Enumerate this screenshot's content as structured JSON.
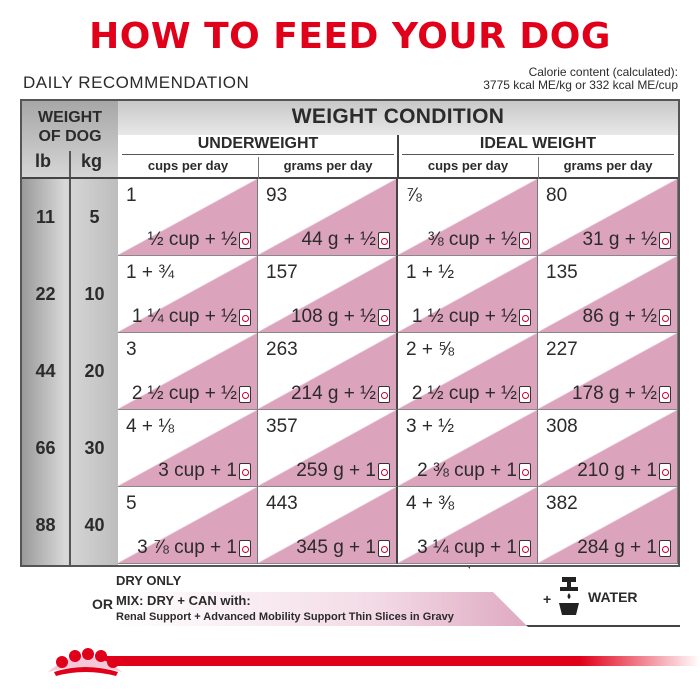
{
  "title": "HOW TO FEED YOUR DOG",
  "daily_recommendation": "DAILY RECOMMENDATION",
  "calorie": {
    "line1": "Calorie content (calculated):",
    "line2": "3775 kcal ME/kg or 332 kcal ME/cup"
  },
  "table": {
    "weight_of_dog_line1": "WEIGHT",
    "weight_of_dog_line2": "OF DOG",
    "lb_label": "lb",
    "kg_label": "kg",
    "weight_condition": "WEIGHT CONDITION",
    "groups": [
      "UNDERWEIGHT",
      "IDEAL WEIGHT"
    ],
    "columns": [
      "cups per day",
      "grams per day",
      "cups per day",
      "grams per day"
    ],
    "rows": [
      {
        "lb": "11",
        "kg": "5",
        "cells": [
          {
            "top": "1",
            "bottom": "½ cup + ½"
          },
          {
            "top": "93",
            "bottom": "44 g + ½"
          },
          {
            "top": "⅞",
            "bottom": "⅜ cup + ½"
          },
          {
            "top": "80",
            "bottom": "31 g + ½"
          }
        ]
      },
      {
        "lb": "22",
        "kg": "10",
        "cells": [
          {
            "top": "1 + ¾",
            "bottom": "1 ¼ cup + ½"
          },
          {
            "top": "157",
            "bottom": "108 g + ½"
          },
          {
            "top": "1 + ½",
            "bottom": "1 ½ cup + ½"
          },
          {
            "top": "135",
            "bottom": "86 g + ½"
          }
        ]
      },
      {
        "lb": "44",
        "kg": "20",
        "cells": [
          {
            "top": "3",
            "bottom": "2 ½ cup + ½"
          },
          {
            "top": "263",
            "bottom": "214 g + ½"
          },
          {
            "top": "2 + ⅝",
            "bottom": "2 ½ cup + ½"
          },
          {
            "top": "227",
            "bottom": "178 g + ½"
          }
        ]
      },
      {
        "lb": "66",
        "kg": "30",
        "cells": [
          {
            "top": "4 + ⅛",
            "bottom": "3 cup + 1"
          },
          {
            "top": "357",
            "bottom": "259 g + 1"
          },
          {
            "top": "3 + ½",
            "bottom": "2 ⅜ cup + 1"
          },
          {
            "top": "308",
            "bottom": "210 g + 1"
          }
        ]
      },
      {
        "lb": "88",
        "kg": "40",
        "cells": [
          {
            "top": "5",
            "bottom": "3 ⅞ cup + 1"
          },
          {
            "top": "443",
            "bottom": "345 g + 1"
          },
          {
            "top": "4 + ⅜",
            "bottom": "3 ¼ cup + 1"
          },
          {
            "top": "382",
            "bottom": "284 g + 1"
          }
        ]
      }
    ]
  },
  "bottom": {
    "dry_only": "DRY ONLY",
    "or": "OR",
    "mix_line1": "MIX: DRY + CAN with:",
    "mix_line2": "Renal Support + Advanced Mobility Support Thin Slices in Gravy",
    "water_plus": "+",
    "water_label": "WATER"
  },
  "colors": {
    "brand_red": "#e1001a",
    "pink_fill": "#dca3bd",
    "header_gray": "#c8c8c8"
  },
  "icons": [
    "can-icon",
    "water-tap-bowl-icon",
    "royal-canin-crown-logo"
  ]
}
